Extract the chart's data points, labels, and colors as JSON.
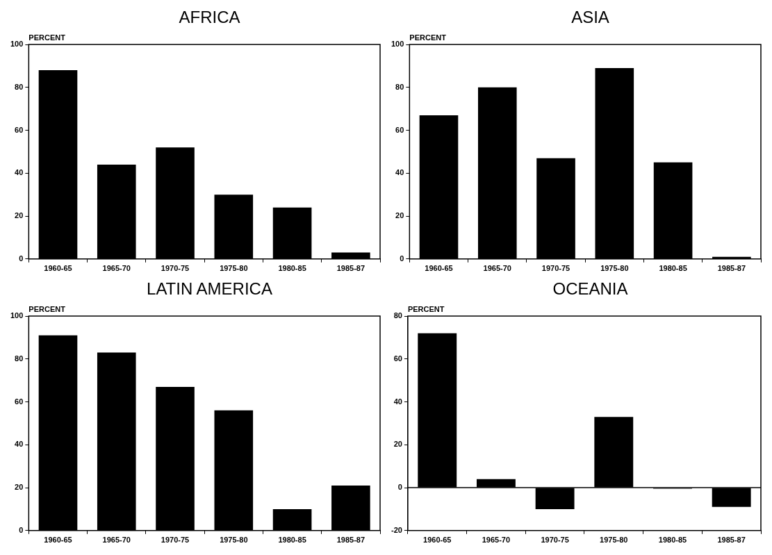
{
  "chart_data": [
    {
      "type": "bar",
      "title": "AFRICA",
      "ylabel": "PERCENT",
      "categories": [
        "1960-65",
        "1965-70",
        "1970-75",
        "1975-80",
        "1980-85",
        "1985-87"
      ],
      "values": [
        88,
        44,
        52,
        30,
        24,
        3
      ],
      "color": "#000000",
      "ylim": [
        0,
        100
      ],
      "yticks": [
        0,
        20,
        40,
        60,
        80,
        100
      ],
      "grid": false,
      "legend": false
    },
    {
      "type": "bar",
      "title": "ASIA",
      "ylabel": "PERCENT",
      "categories": [
        "1960-65",
        "1965-70",
        "1970-75",
        "1975-80",
        "1980-85",
        "1985-87"
      ],
      "values": [
        67,
        80,
        47,
        89,
        45,
        1
      ],
      "color": "#000000",
      "ylim": [
        0,
        100
      ],
      "yticks": [
        0,
        20,
        40,
        60,
        80,
        100
      ],
      "grid": false,
      "legend": false
    },
    {
      "type": "bar",
      "title": "LATIN AMERICA",
      "ylabel": "PERCENT",
      "categories": [
        "1960-65",
        "1965-70",
        "1970-75",
        "1975-80",
        "1980-85",
        "1985-87"
      ],
      "values": [
        91,
        83,
        67,
        56,
        10,
        21
      ],
      "color": "#000000",
      "ylim": [
        0,
        100
      ],
      "yticks": [
        0,
        20,
        40,
        60,
        80,
        100
      ],
      "grid": false,
      "legend": false
    },
    {
      "type": "bar",
      "title": "OCEANIA",
      "ylabel": "PERCENT",
      "categories": [
        "1960-65",
        "1965-70",
        "1970-75",
        "1975-80",
        "1980-85",
        "1985-87"
      ],
      "values": [
        72,
        4,
        -10,
        33,
        -0.5,
        -9
      ],
      "color": "#000000",
      "ylim": [
        -20,
        80
      ],
      "yticks": [
        -20,
        0,
        20,
        40,
        60,
        80
      ],
      "grid": false,
      "legend": false,
      "ref_lines": [
        {
          "axis": "y",
          "value": 0,
          "color": "#000000"
        }
      ]
    }
  ]
}
